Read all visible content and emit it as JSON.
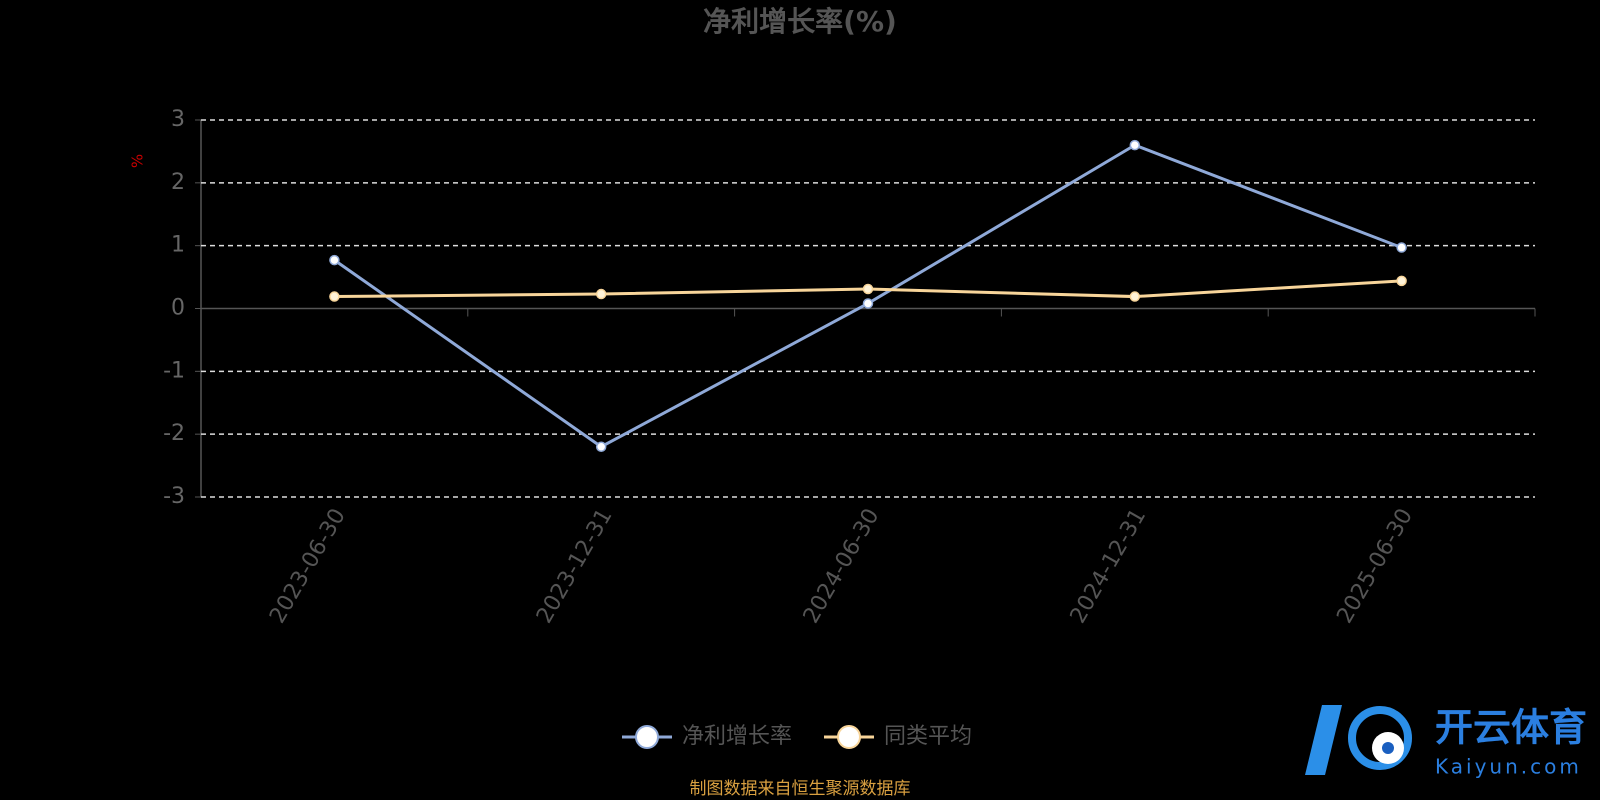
{
  "chart_data": {
    "type": "line",
    "title": "净利增长率(%)",
    "y_label": "%",
    "categories": [
      "2023-06-30",
      "2023-12-31",
      "2024-06-30",
      "2024-12-31",
      "2025-06-30"
    ],
    "series": [
      {
        "name": "净利增长率",
        "color": "#8fa9d8",
        "values": [
          0.77,
          -2.2,
          0.08,
          2.6,
          0.97
        ]
      },
      {
        "name": "同类平均",
        "color": "#f8d59a",
        "values": [
          0.19,
          0.23,
          0.31,
          0.19,
          0.44
        ]
      }
    ],
    "ylim": [
      -3,
      3
    ],
    "yticks": [
      -3,
      -2,
      -1,
      0,
      1,
      2,
      3
    ],
    "grid": true,
    "legend": "bottom",
    "source": "制图数据来自恒生聚源数据库",
    "watermark": {
      "text": "开云体育",
      "subtext": "Kaiyun.com"
    }
  }
}
